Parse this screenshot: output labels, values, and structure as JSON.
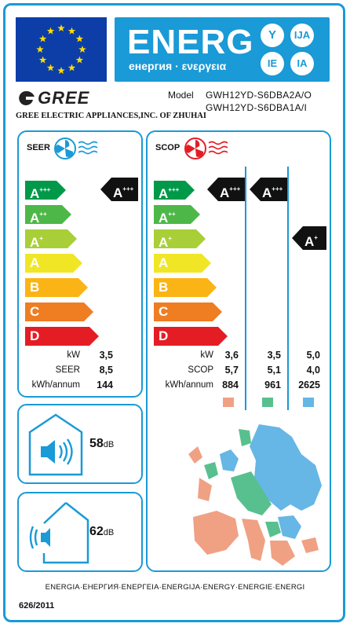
{
  "header": {
    "energy_word": "ENERG",
    "energy_subtitle": "енергия · ενεργεια",
    "lang_badges": [
      "Y",
      "IJA",
      "IE",
      "IA"
    ]
  },
  "supplier": {
    "logo_text": "GREE",
    "company": "GREE ELECTRIC APPLIANCES,INC. OF ZHUHAI",
    "model_label": "Model",
    "model_indoor": "GWH12YD-S6DBA2A/O",
    "model_outdoor": "GWH12YD-S6DBA1A/I"
  },
  "seer_panel": {
    "title": "SEER",
    "classes": [
      {
        "letter": "A",
        "sup": "+++",
        "color": "#00994a"
      },
      {
        "letter": "A",
        "sup": "++",
        "color": "#4db848"
      },
      {
        "letter": "A",
        "sup": "+",
        "color": "#a8cf38"
      },
      {
        "letter": "A",
        "sup": "",
        "color": "#f1e626"
      },
      {
        "letter": "B",
        "sup": "",
        "color": "#fbb415"
      },
      {
        "letter": "C",
        "sup": "",
        "color": "#ef7d22"
      },
      {
        "letter": "D",
        "sup": "",
        "color": "#e41d25"
      }
    ],
    "rating": {
      "letter": "A",
      "sup": "+++"
    },
    "rows": [
      {
        "label": "kW",
        "value": "3,5"
      },
      {
        "label": "SEER",
        "value": "8,5"
      },
      {
        "label": "kWh/annum",
        "value": "144"
      }
    ]
  },
  "scop_panel": {
    "title": "SCOP",
    "classes": [
      {
        "letter": "A",
        "sup": "+++",
        "color": "#00994a"
      },
      {
        "letter": "A",
        "sup": "++",
        "color": "#4db848"
      },
      {
        "letter": "A",
        "sup": "+",
        "color": "#a8cf38"
      },
      {
        "letter": "A",
        "sup": "",
        "color": "#f1e626"
      },
      {
        "letter": "B",
        "sup": "",
        "color": "#fbb415"
      },
      {
        "letter": "C",
        "sup": "",
        "color": "#ef7d22"
      },
      {
        "letter": "D",
        "sup": "",
        "color": "#e41d25"
      }
    ],
    "ratings": [
      {
        "letter": "A",
        "sup": "+++"
      },
      {
        "letter": "A",
        "sup": "+++"
      },
      {
        "letter": "A",
        "sup": "+"
      }
    ],
    "row_labels": [
      "kW",
      "SCOP",
      "kWh/annum"
    ],
    "columns": [
      {
        "kw": "3,6",
        "scop": "5,7",
        "kwh": "884",
        "zone_color": "#f0a184"
      },
      {
        "kw": "3,5",
        "scop": "5,1",
        "kwh": "961",
        "zone_color": "#58c08f"
      },
      {
        "kw": "5,0",
        "scop": "4,0",
        "kwh": "2625",
        "zone_color": "#66b6e6"
      }
    ]
  },
  "noise": {
    "indoor_value": "58",
    "outdoor_value": "62",
    "unit": "dB"
  },
  "footer": {
    "languages": "ENERGIA·ЕНЕРГИЯ·ΕΝΕΡΓΕΙΑ·ENERGIJA·ENERGY·ENERGIE·ENERGI",
    "regulation": "626/2011"
  },
  "colors": {
    "accent": "#1a9ad6",
    "eu_blue": "#0d3ea8",
    "eu_star": "#ffdd00",
    "fan_blue": "#1a9ad6",
    "fan_red": "#e41d25"
  }
}
